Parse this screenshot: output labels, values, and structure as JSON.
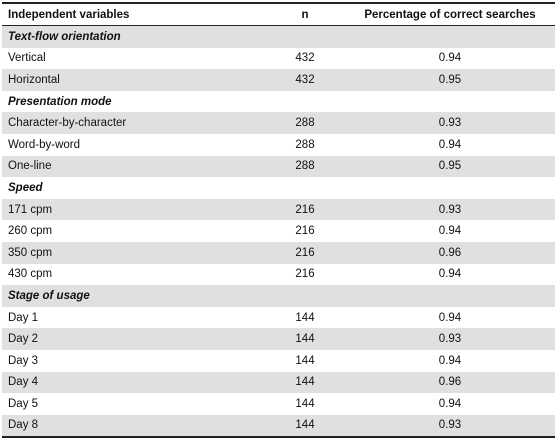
{
  "table": {
    "columns": [
      "Independent variables",
      "n",
      "Percentage of correct searches"
    ],
    "groups": [
      {
        "title": "Text-flow orientation",
        "rows": [
          {
            "label": "Vertical",
            "n": "432",
            "pct": "0.94"
          },
          {
            "label": "Horizontal",
            "n": "432",
            "pct": "0.95"
          }
        ]
      },
      {
        "title": "Presentation mode",
        "rows": [
          {
            "label": "Character-by-character",
            "n": "288",
            "pct": "0.93"
          },
          {
            "label": "Word-by-word",
            "n": "288",
            "pct": "0.94"
          },
          {
            "label": "One-line",
            "n": "288",
            "pct": "0.95"
          }
        ]
      },
      {
        "title": "Speed",
        "rows": [
          {
            "label": "171 cpm",
            "n": "216",
            "pct": "0.93"
          },
          {
            "label": "260 cpm",
            "n": "216",
            "pct": "0.94"
          },
          {
            "label": "350 cpm",
            "n": "216",
            "pct": "0.96"
          },
          {
            "label": "430 cpm",
            "n": "216",
            "pct": "0.94"
          }
        ]
      },
      {
        "title": "Stage of usage",
        "rows": [
          {
            "label": "Day 1",
            "n": "144",
            "pct": "0.94"
          },
          {
            "label": "Day 2",
            "n": "144",
            "pct": "0.93"
          },
          {
            "label": "Day 3",
            "n": "144",
            "pct": "0.94"
          },
          {
            "label": "Day 4",
            "n": "144",
            "pct": "0.96"
          },
          {
            "label": "Day 5",
            "n": "144",
            "pct": "0.94"
          },
          {
            "label": "Day 8",
            "n": "144",
            "pct": "0.93"
          }
        ]
      }
    ],
    "colors": {
      "shade": "#e0e0e0",
      "rule": "#222222"
    }
  }
}
